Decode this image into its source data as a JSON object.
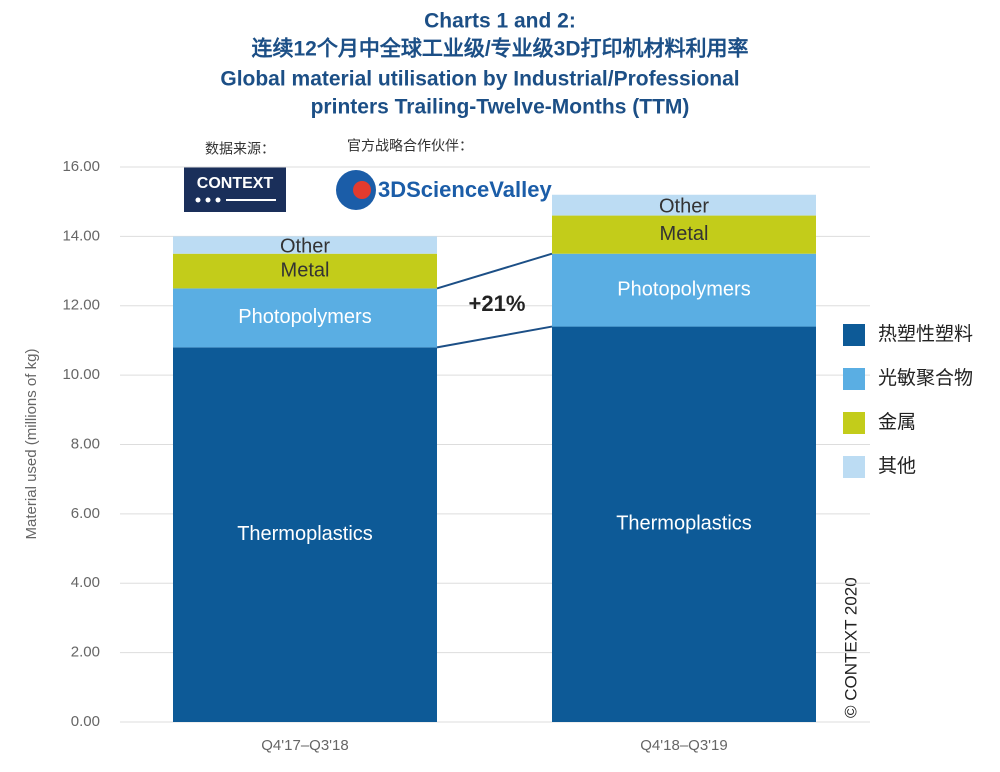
{
  "chart_data": {
    "type": "stacked_bar",
    "title": [
      "Charts 1 and 2:",
      "连续12个月中全球工业级/专业级3D打印机材料利用率",
      "Global material utilisation by Industrial/Professional",
      "printers Trailing-Twelve-Months (TTM)"
    ],
    "ylabel": "Material used (millions of kg)",
    "categories": [
      "Q4'17–Q3'18",
      "Q4'18–Q3'19"
    ],
    "series": [
      {
        "name": "热塑性塑料",
        "label": "Thermoplastics",
        "color": "#0d5a97",
        "values": [
          10.8,
          11.4
        ]
      },
      {
        "name": "光敏聚合物",
        "label": "Photopolymers",
        "color": "#5aaee3",
        "values": [
          1.7,
          2.1
        ]
      },
      {
        "name": "金属",
        "label": "Metal",
        "color": "#c3cc1a",
        "values": [
          1.0,
          1.1
        ]
      },
      {
        "name": "其他",
        "label": "Other",
        "color": "#bcdcf3",
        "values": [
          0.5,
          0.6
        ]
      }
    ],
    "ylim": [
      0,
      16
    ],
    "yticks": [
      {
        "value": 0,
        "label": "0.00"
      },
      {
        "value": 2,
        "label": "2.00"
      },
      {
        "value": 4,
        "label": "4.00"
      },
      {
        "value": 6,
        "label": "6.00"
      },
      {
        "value": 8,
        "label": "8.00"
      },
      {
        "value": 10,
        "label": "10.00"
      },
      {
        "value": 12,
        "label": "12.00"
      },
      {
        "value": 14,
        "label": "14.00"
      },
      {
        "value": 16,
        "label": "16.00"
      }
    ],
    "grid": true,
    "legend": "right",
    "annotations": {
      "growth": "+21%",
      "copyright": "© CONTEXT 2020",
      "source_label": "数据来源：",
      "partner_label": "官方战略合作伙伴：",
      "source_logo": "CONTEXT",
      "partner_logo": "3DScienceValley"
    }
  }
}
